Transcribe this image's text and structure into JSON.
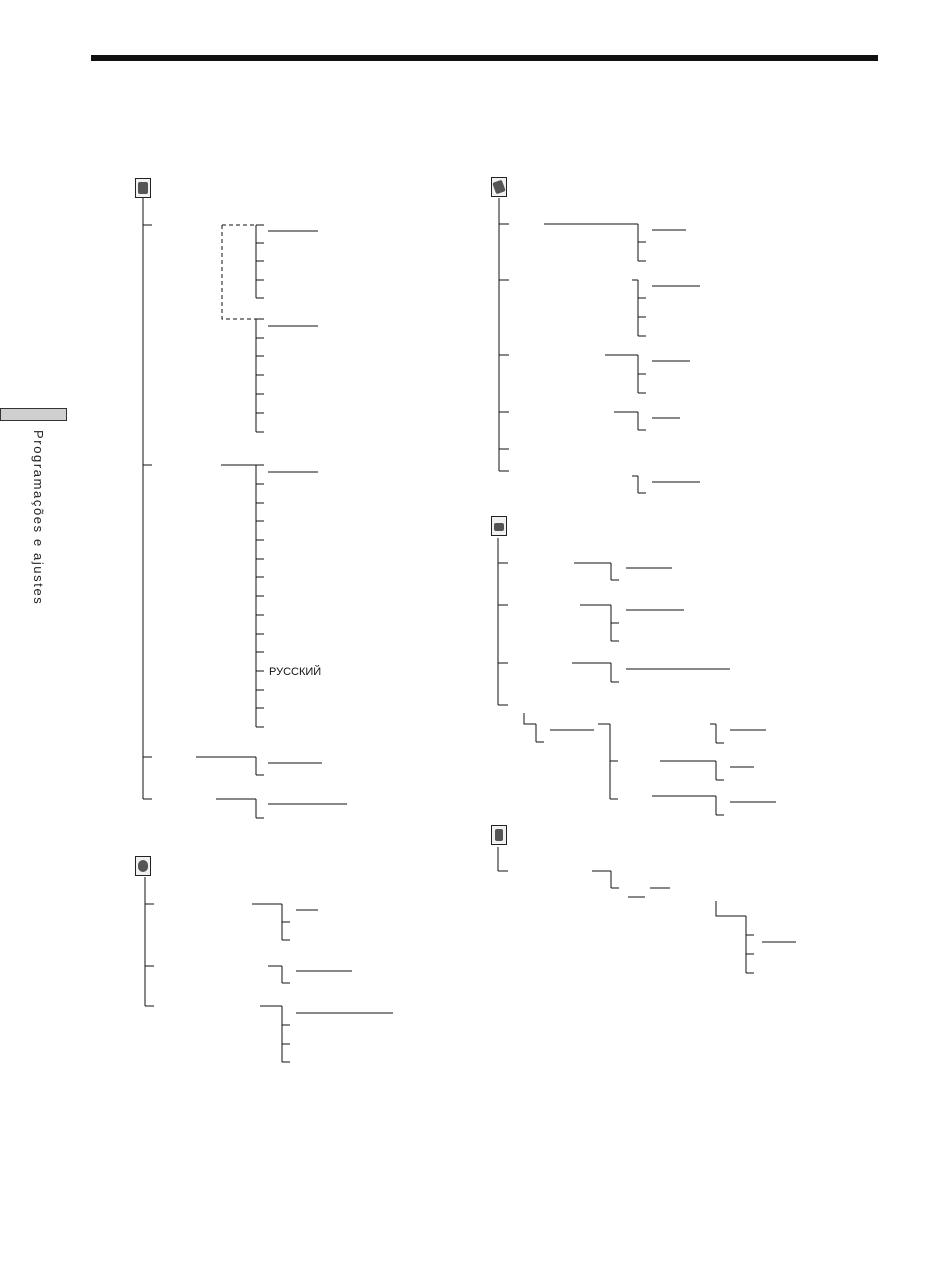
{
  "section_side_label": "Programações e ajustes",
  "menus": {
    "setup_menu": {
      "icon": "setup-tools-icon"
    },
    "camera_menu": {
      "icon": "camera-rotate-icon"
    },
    "clock_menu": {
      "icon": "calendar-clock-icon"
    },
    "tape_menu": {
      "icon": "tape-cassette-icon"
    },
    "playback_menu": {
      "icon": "memory-card-icon"
    }
  },
  "language_options": {
    "russian": "РУССКИЙ"
  }
}
